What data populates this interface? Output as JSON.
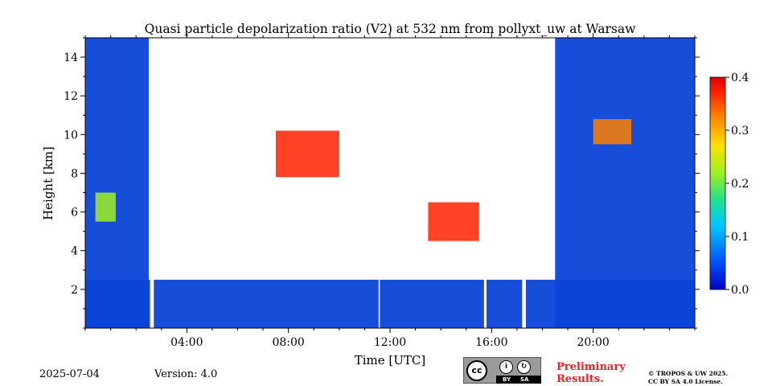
{
  "chart_data": {
    "type": "heatmap",
    "title": "Quasi particle depolarization ratio (V2) at 532 nm from pollyxt_uw at Warsaw",
    "xlabel": "Time [UTC]",
    "ylabel": "Height [km]",
    "xlim": [
      0.0,
      24.0
    ],
    "ylim": [
      0.0,
      15.0
    ],
    "x_ticks": [
      "04:00",
      "08:00",
      "12:00",
      "16:00",
      "20:00"
    ],
    "x_tick_values": [
      4,
      8,
      12,
      16,
      20
    ],
    "y_ticks": [
      "2",
      "4",
      "6",
      "8",
      "10",
      "12",
      "14"
    ],
    "y_tick_values": [
      2,
      4,
      6,
      8,
      10,
      12,
      14
    ],
    "colorbar": {
      "min": 0.0,
      "max": 0.4,
      "ticks": [
        "0.0",
        "0.1",
        "0.2",
        "0.3",
        "0.4"
      ],
      "tick_values": [
        0.0,
        0.1,
        0.2,
        0.3,
        0.4
      ],
      "colormap": "jet",
      "colors": [
        "#0000cc",
        "#0060ff",
        "#00c8ff",
        "#20e090",
        "#a0f020",
        "#ffe000",
        "#ff8000",
        "#ff2000",
        "#dd0000"
      ]
    },
    "background_color": "#0a45d8",
    "regions": [
      {
        "name": "low-depol-boundary-layer",
        "x": [
          0.0,
          24.0
        ],
        "y": [
          0.0,
          2.5
        ],
        "value": 0.02
      },
      {
        "name": "low-depol-column-night",
        "x": [
          0.0,
          2.5
        ],
        "y": [
          0.0,
          15.0
        ],
        "value": 0.03
      },
      {
        "name": "low-depol-column-evening",
        "x": [
          18.5,
          24.0
        ],
        "y": [
          0.0,
          15.0
        ],
        "value": 0.03
      },
      {
        "name": "aerosol-patch",
        "x": [
          0.4,
          1.2
        ],
        "y": [
          5.5,
          7.0
        ],
        "value": 0.18
      },
      {
        "name": "cirrus-morning",
        "x": [
          7.5,
          10.0
        ],
        "y": [
          7.8,
          10.2
        ],
        "value": 0.33
      },
      {
        "name": "cirrus-afternoon",
        "x": [
          13.5,
          15.5
        ],
        "y": [
          4.5,
          6.5
        ],
        "value": 0.34
      },
      {
        "name": "cirrus-evening",
        "x": [
          20.0,
          21.5
        ],
        "y": [
          9.5,
          10.8
        ],
        "value": 0.32
      }
    ],
    "missing_data_intervals": [
      [
        2.55,
        2.7
      ],
      [
        11.55,
        11.6
      ],
      [
        15.7,
        15.8
      ],
      [
        17.2,
        17.35
      ]
    ]
  },
  "footer": {
    "date": "2025-07-04",
    "version": "Version: 4.0",
    "preliminary": "Preliminary Results.",
    "copyright_line1": "© TROPOS & UW 2025.",
    "copyright_line2": "CC BY SA 4.0 License.",
    "license_badge": {
      "cc": "cc",
      "by": "BY",
      "sa": "SA"
    }
  }
}
